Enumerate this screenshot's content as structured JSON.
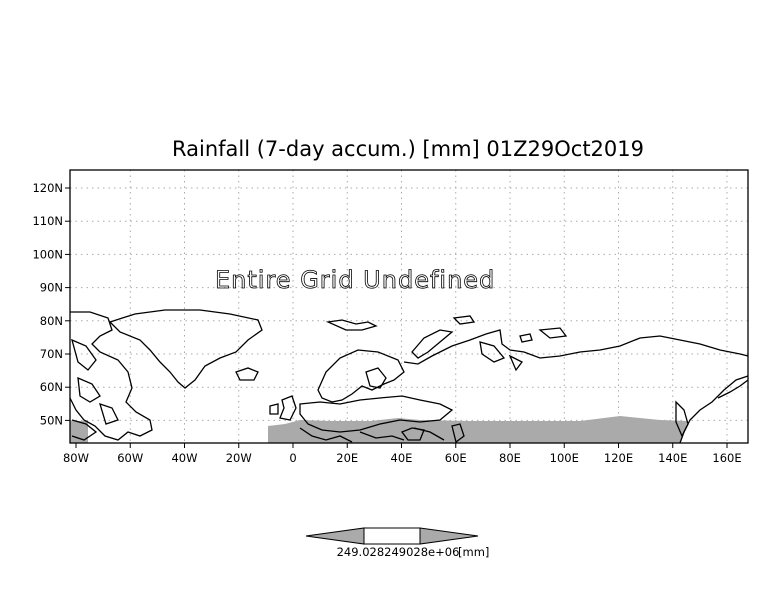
{
  "map": {
    "title": "Rainfall (7-day accum.) [mm] 01Z29Oct2019",
    "notice": "Entire Grid Undefined",
    "lon_labels": [
      "80W",
      "60W",
      "40W",
      "20W",
      "0",
      "20E",
      "40E",
      "60E",
      "80E",
      "100E",
      "120E",
      "140E",
      "160E"
    ],
    "lat_labels": [
      "120N",
      "110N",
      "100N",
      "90N",
      "80N",
      "70N",
      "60N",
      "50N"
    ],
    "grid": true,
    "colors": {
      "land_shade": "#aaaaaa",
      "coastline": "#000000",
      "grid": "#aaaaaa"
    }
  },
  "colorbar": {
    "label": "249.028249028e+06",
    "units": "[mm]",
    "colors": [
      "#aaaaaa",
      "#ffffff",
      "#aaaaaa"
    ]
  }
}
